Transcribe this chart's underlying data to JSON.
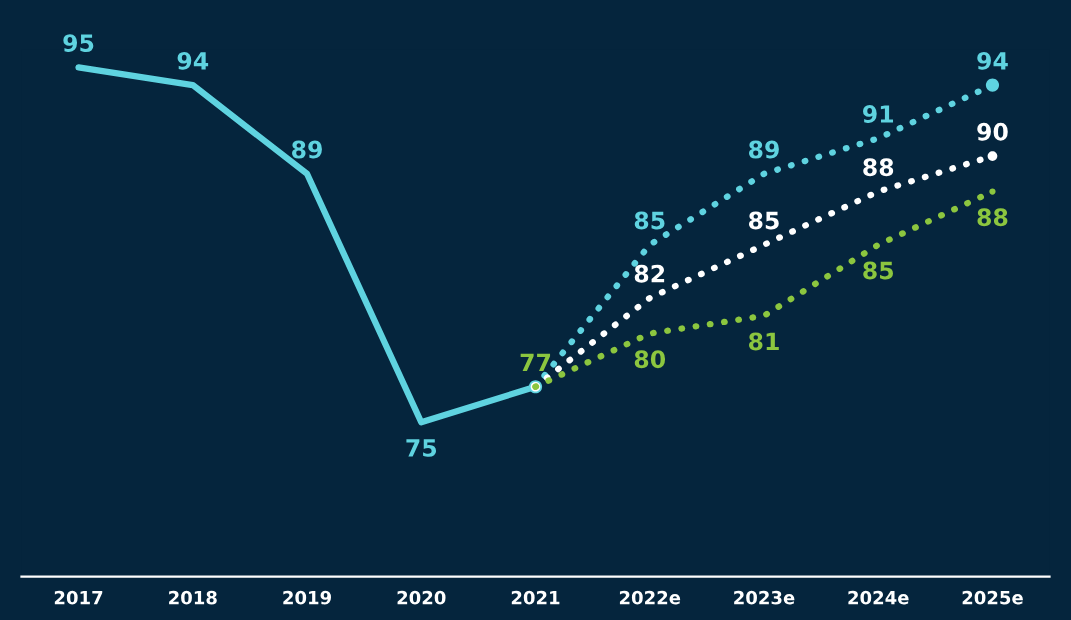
{
  "chart_data": {
    "type": "line",
    "categories": [
      "2017",
      "2018",
      "2019",
      "2020",
      "2021",
      "2022e",
      "2023e",
      "2024e",
      "2025e"
    ],
    "series": [
      {
        "color": "#5fd3e0",
        "line_style": "solid",
        "values": [
          95,
          94,
          89,
          75,
          77,
          null,
          null,
          null,
          null
        ],
        "value_labels": [
          "95",
          "94",
          "89",
          "75",
          null,
          null,
          null,
          null,
          null
        ]
      },
      {
        "color": "#5fd3e0",
        "line_style": "dotted",
        "values": [
          null,
          null,
          null,
          null,
          77,
          85,
          89,
          91,
          94
        ],
        "value_labels": [
          null,
          null,
          null,
          null,
          null,
          "85",
          "89",
          "91",
          "94"
        ]
      },
      {
        "color": "#ffffff",
        "line_style": "dotted",
        "values": [
          null,
          null,
          null,
          null,
          77,
          82,
          85,
          88,
          90
        ],
        "value_labels": [
          null,
          null,
          null,
          null,
          null,
          "82",
          "85",
          "88",
          "90"
        ]
      },
      {
        "color": "#8cc63f",
        "line_style": "dotted",
        "values": [
          null,
          null,
          null,
          null,
          77,
          80,
          81,
          85,
          88
        ],
        "value_labels": [
          null,
          null,
          null,
          null,
          "77",
          "80",
          "81",
          "85",
          "88"
        ]
      }
    ],
    "grid": false,
    "legend": false,
    "marker": "none"
  }
}
